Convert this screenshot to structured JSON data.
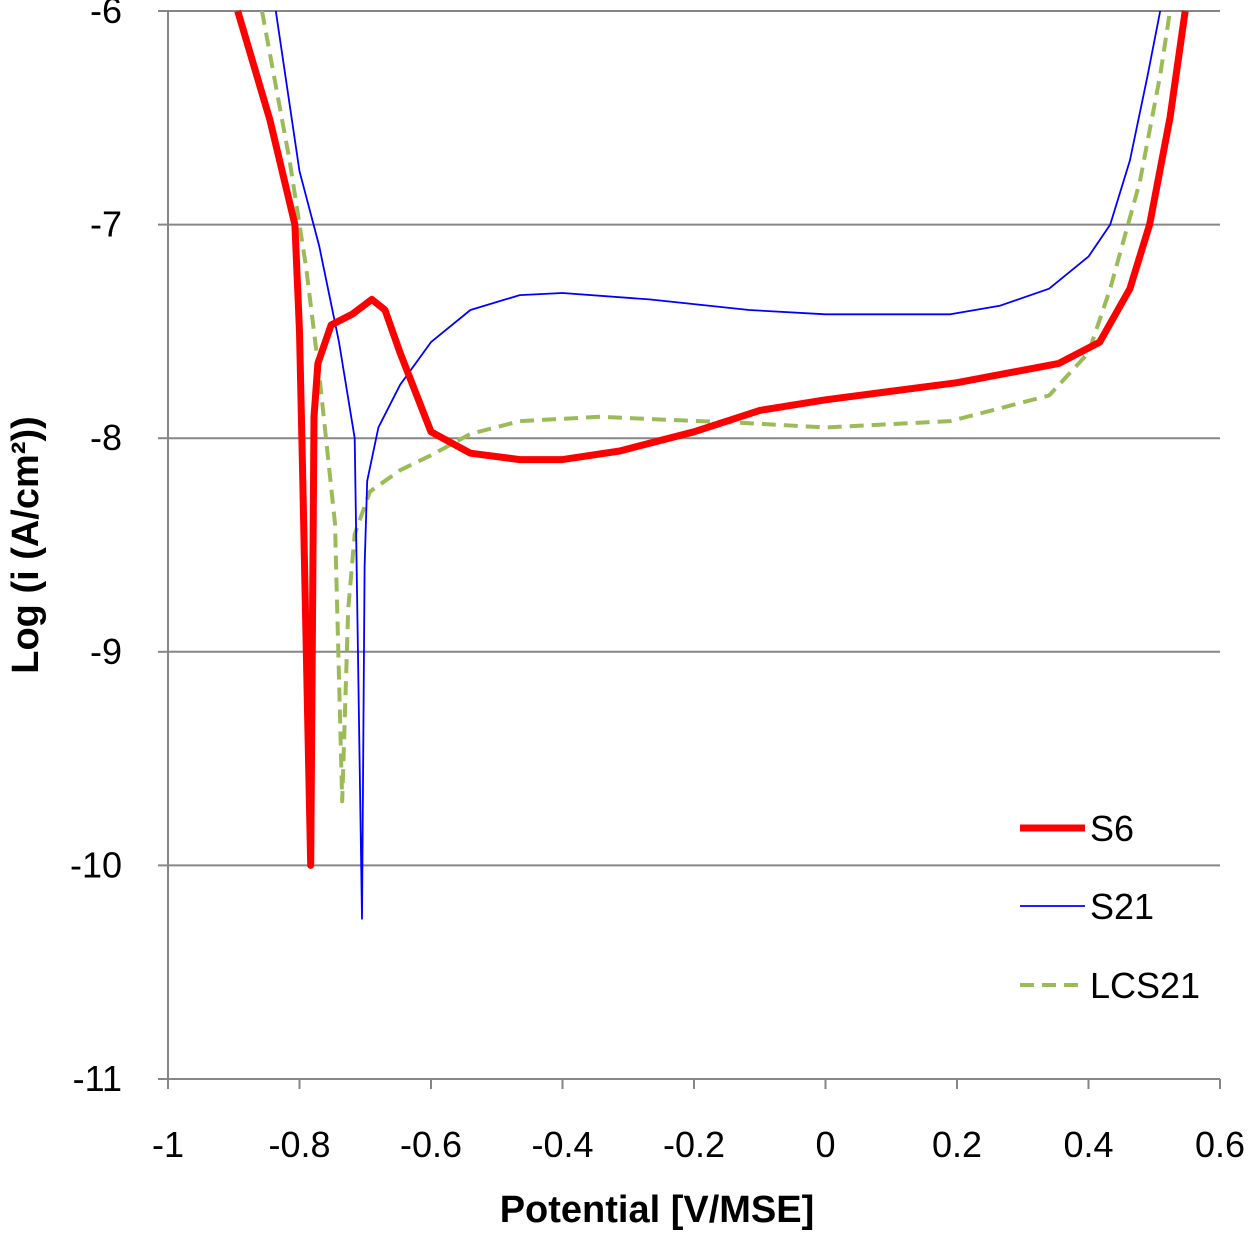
{
  "chart_data": {
    "type": "line",
    "title": "",
    "xlabel": "Potential [V/MSE]",
    "ylabel": "Log (i (A/cm²))",
    "xlim": [
      -1,
      0.6
    ],
    "ylim": [
      -11,
      -6
    ],
    "xticks": [
      -1,
      -0.8,
      -0.6,
      -0.4,
      -0.2,
      0,
      0.2,
      0.4,
      0.6
    ],
    "xtick_labels": [
      "-1",
      "-0.8",
      "-0.6",
      "-0.4",
      "-0.2",
      "0",
      "0.2",
      "0.4",
      "0.6"
    ],
    "yticks": [
      -6,
      -7,
      -8,
      -9,
      -10,
      -11
    ],
    "ytick_labels": [
      "-6",
      "-7",
      "-8",
      "-9",
      "-10",
      "-11"
    ],
    "grid": "horizontal",
    "legend_position": "bottom-right",
    "series": [
      {
        "name": "S6",
        "color": "#ff0000",
        "style": "solid-thick",
        "x": [
          -0.894,
          -0.845,
          -0.807,
          -0.8,
          -0.795,
          -0.783,
          -0.778,
          -0.772,
          -0.752,
          -0.72,
          -0.69,
          -0.67,
          -0.647,
          -0.6,
          -0.54,
          -0.465,
          -0.4,
          -0.313,
          -0.2,
          -0.1,
          0,
          0.2,
          0.355,
          0.417,
          0.463,
          0.493,
          0.524,
          0.547
        ],
        "y": [
          -6,
          -6.51,
          -7.0,
          -7.5,
          -8.2,
          -10,
          -7.9,
          -7.65,
          -7.47,
          -7.42,
          -7.35,
          -7.4,
          -7.6,
          -7.97,
          -8.07,
          -8.1,
          -8.1,
          -8.06,
          -7.97,
          -7.87,
          -7.82,
          -7.74,
          -7.65,
          -7.55,
          -7.3,
          -7.0,
          -6.5,
          -6.0
        ]
      },
      {
        "name": "S21",
        "color": "#0000ff",
        "style": "solid-thin",
        "x": [
          -0.836,
          -0.8,
          -0.77,
          -0.74,
          -0.716,
          -0.705,
          -0.701,
          -0.697,
          -0.68,
          -0.647,
          -0.6,
          -0.54,
          -0.465,
          -0.4,
          -0.268,
          -0.116,
          0,
          0.19,
          0.265,
          0.34,
          0.4,
          0.433,
          0.463,
          0.49,
          0.509
        ],
        "y": [
          -6,
          -6.75,
          -7.1,
          -7.55,
          -8.0,
          -10.25,
          -8.6,
          -8.2,
          -7.95,
          -7.75,
          -7.55,
          -7.4,
          -7.33,
          -7.32,
          -7.35,
          -7.4,
          -7.42,
          -7.42,
          -7.38,
          -7.3,
          -7.15,
          -7.0,
          -6.7,
          -6.3,
          -6.0
        ]
      },
      {
        "name": "LCS21",
        "color": "#9bbb59",
        "style": "dashed",
        "x": [
          -0.857,
          -0.815,
          -0.79,
          -0.77,
          -0.746,
          -0.735,
          -0.726,
          -0.716,
          -0.693,
          -0.647,
          -0.6,
          -0.54,
          -0.465,
          -0.343,
          -0.268,
          -0.116,
          0,
          0.19,
          0.34,
          0.4,
          0.433,
          0.478,
          0.509,
          0.524
        ],
        "y": [
          -6,
          -6.7,
          -7.2,
          -7.7,
          -8.4,
          -9.7,
          -8.8,
          -8.45,
          -8.25,
          -8.15,
          -8.08,
          -7.98,
          -7.92,
          -7.9,
          -7.91,
          -7.93,
          -7.95,
          -7.92,
          -7.8,
          -7.6,
          -7.3,
          -6.8,
          -6.3,
          -6.0
        ]
      }
    ]
  }
}
